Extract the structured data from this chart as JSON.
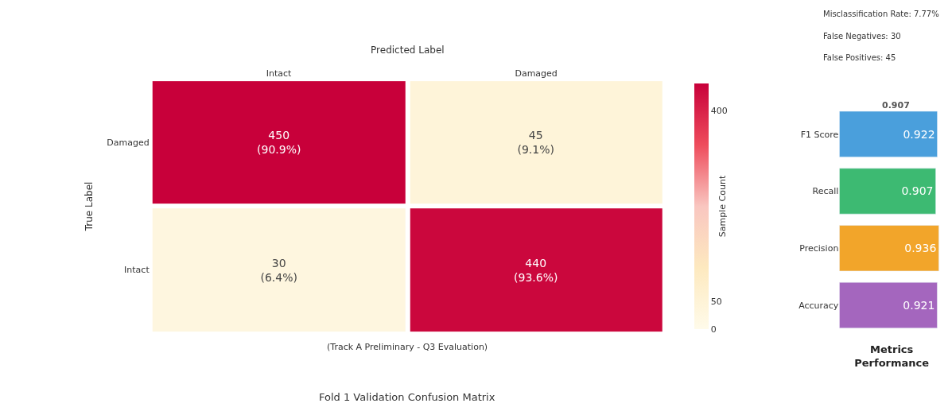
{
  "chart_data": [
    {
      "type": "heatmap",
      "title": "Fold 1 Validation Confusion Matrix",
      "subtitle": "(Track A Preliminary - Q3 Evaluation)",
      "xlabel": "Predicted Label",
      "ylabel": "True Label",
      "clabel": "Sample Count",
      "categories": [
        "Intact",
        "Damaged"
      ],
      "y_categories": [
        "Damaged",
        "Intact"
      ],
      "cells": [
        [
          450,
          45
        ],
        [
          30,
          440
        ]
      ],
      "cell_labels": [
        [
          "450\n(90.9%)",
          "45\n(9.1%)"
        ],
        [
          "30\n(6.4%)",
          "440\n(93.6%)"
        ]
      ],
      "colors": [
        "#fffbea",
        "#fde9bf",
        "#f9c6c0",
        "#ee4c5c",
        "#c8003a"
      ],
      "clim": [
        0,
        450
      ],
      "cticks": [
        0,
        50,
        400
      ]
    },
    {
      "type": "bar",
      "orientation": "horizontal",
      "xlabel": "Metrics\nPerformance",
      "categories": [
        "F1 Score",
        "Recall",
        "Precision",
        "Accuracy"
      ],
      "values": [
        0.922,
        0.907,
        0.936,
        0.921
      ],
      "colors": [
        "#4a9fdc",
        "#3dba72",
        "#f2a52a",
        "#a466be"
      ],
      "data_labels": true,
      "annotations": [
        "Misclassification Rate: 7.77%",
        "False Negatives: 30",
        "False Positives: 45",
        "0.907"
      ]
    }
  ]
}
